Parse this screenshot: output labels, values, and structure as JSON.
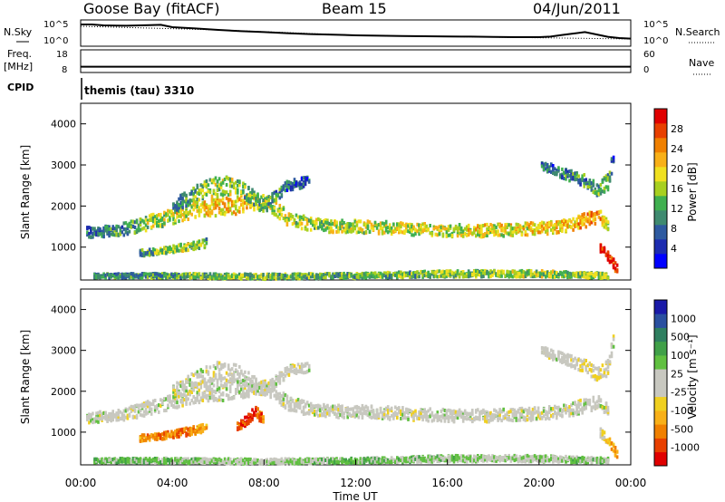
{
  "header": {
    "station": "Goose Bay (fitACF)",
    "beam": "Beam 15",
    "date": "04/Jun/2011"
  },
  "chart_data": [
    {
      "type": "line",
      "panel": "noise",
      "left_label": "N.Sky",
      "right_label": "N.Search",
      "left_ticks": [
        "10^5",
        "10^0"
      ],
      "right_ticks": [
        "10^5",
        "10^0"
      ],
      "series": [
        {
          "name": "N.Sky",
          "style": "solid",
          "x": [
            0,
            0.5,
            1,
            2,
            3,
            3.5,
            4,
            5,
            6,
            7,
            8,
            9,
            10,
            11,
            12,
            13,
            14,
            15,
            16,
            17,
            18,
            19,
            20,
            20.5,
            21,
            21.5,
            22,
            22.5,
            23,
            23.5,
            24
          ],
          "y": [
            1.0,
            1.0,
            0.95,
            0.93,
            0.96,
            0.98,
            0.85,
            0.78,
            0.7,
            0.63,
            0.58,
            0.52,
            0.47,
            0.44,
            0.4,
            0.38,
            0.36,
            0.35,
            0.34,
            0.33,
            0.31,
            0.3,
            0.3,
            0.33,
            0.42,
            0.5,
            0.58,
            0.45,
            0.32,
            0.25,
            0.22
          ]
        },
        {
          "name": "N.Search",
          "style": "dotted",
          "x": [
            0,
            6,
            12,
            18,
            24
          ],
          "y": [
            0.9,
            0.7,
            0.4,
            0.3,
            0.2
          ]
        }
      ]
    },
    {
      "type": "line",
      "panel": "frequency",
      "left_label": "Freq.",
      "left_unit": "[MHz]",
      "right_label": "Nave",
      "left_ticks": [
        "18",
        "8"
      ],
      "right_ticks": [
        "60",
        "0"
      ],
      "series": [
        {
          "name": "Freq.",
          "values_label": "frequency",
          "x": [
            0,
            24
          ],
          "y": [
            10.2,
            10.2
          ]
        },
        {
          "name": "Nave",
          "style": "dotted",
          "x": [
            0,
            24
          ],
          "y": [
            13,
            13
          ]
        }
      ]
    },
    {
      "type": "text",
      "panel": "cpid",
      "label": "CPID",
      "value": "themis (tau) 3310"
    },
    {
      "type": "heatmap",
      "panel": "power",
      "ylabel": "Slant Range [km]",
      "xlim": [
        0,
        24
      ],
      "ylim": [
        200,
        4500
      ],
      "yticks": [
        "1000",
        "2000",
        "3000",
        "4000"
      ],
      "colorbar": {
        "label": "Power [dB]",
        "ticks": [
          "4",
          "8",
          "12",
          "16",
          "20",
          "24",
          "28"
        ],
        "colors": [
          "#0000ff",
          "#1d2cb0",
          "#2e5aa0",
          "#3f8a70",
          "#40b050",
          "#a8d020",
          "#f0e020",
          "#f8b018",
          "#f08000",
          "#e84000",
          "#e00000"
        ]
      },
      "bands": [
        {
          "name": "main",
          "x": [
            0.2,
            1,
            2,
            3,
            4,
            4.8,
            5.5,
            6.5,
            7.5,
            8.2,
            9,
            10,
            11,
            12,
            14,
            16,
            18,
            20,
            21,
            22,
            22.6,
            23.0
          ],
          "y": [
            1350,
            1380,
            1450,
            1600,
            1750,
            1900,
            1980,
            2000,
            2100,
            2050,
            1700,
            1550,
            1500,
            1500,
            1450,
            1400,
            1400,
            1450,
            1500,
            1650,
            1750,
            1500
          ],
          "w": [
            250,
            250,
            300,
            350,
            350,
            400,
            450,
            450,
            400,
            350,
            350,
            300,
            300,
            300,
            300,
            300,
            300,
            300,
            300,
            350,
            300,
            250
          ],
          "level": [
            0.25,
            0.3,
            0.35,
            0.5,
            0.55,
            0.6,
            0.65,
            0.65,
            0.62,
            0.55,
            0.55,
            0.5,
            0.52,
            0.52,
            0.55,
            0.55,
            0.58,
            0.62,
            0.65,
            0.7,
            0.75,
            0.4
          ]
        },
        {
          "name": "upper",
          "x": [
            4,
            5,
            6,
            7,
            8,
            9,
            10
          ],
          "y": [
            2000,
            2300,
            2500,
            2400,
            2000,
            2500,
            2600
          ],
          "w": [
            300,
            400,
            500,
            400,
            300,
            250,
            250
          ],
          "level": [
            0.3,
            0.45,
            0.5,
            0.45,
            0.4,
            0.25,
            0.2
          ]
        },
        {
          "name": "lowE",
          "x": [
            2.5,
            3.5,
            4.5,
            5.5
          ],
          "y": [
            850,
            900,
            1000,
            1100
          ],
          "w": [
            150,
            150,
            200,
            200
          ],
          "level": [
            0.35,
            0.45,
            0.5,
            0.4
          ]
        },
        {
          "name": "near",
          "x": [
            0.5,
            4,
            8,
            12,
            16,
            20,
            23
          ],
          "y": [
            300,
            300,
            280,
            300,
            350,
            350,
            300
          ],
          "w": [
            100,
            120,
            120,
            120,
            150,
            150,
            120
          ],
          "level": [
            0.3,
            0.4,
            0.45,
            0.4,
            0.45,
            0.5,
            0.45
          ]
        },
        {
          "name": "late",
          "x": [
            20,
            21,
            22,
            22.5,
            23,
            23.2
          ],
          "y": [
            3000,
            2800,
            2600,
            2400,
            2600,
            3200
          ],
          "w": [
            200,
            250,
            300,
            300,
            400,
            400
          ],
          "level": [
            0.2,
            0.3,
            0.35,
            0.4,
            0.35,
            0.2
          ]
        },
        {
          "name": "spot",
          "x": [
            22.6,
            22.8,
            23.2,
            23.4
          ],
          "y": [
            1000,
            900,
            600,
            400
          ],
          "w": [
            200,
            200,
            250,
            250
          ],
          "level": [
            0.9,
            0.92,
            0.95,
            0.9
          ]
        }
      ]
    },
    {
      "type": "heatmap",
      "panel": "velocity",
      "ylabel": "Slant Range [km]",
      "xlabel": "Time UT",
      "xlim": [
        0,
        24
      ],
      "ylim": [
        200,
        4500
      ],
      "xticks": [
        "00:00",
        "04:00",
        "08:00",
        "12:00",
        "16:00",
        "20:00",
        "00:00"
      ],
      "yticks": [
        "1000",
        "2000",
        "3000",
        "4000"
      ],
      "colorbar": {
        "label": "Velocity [m s⁻¹]",
        "ticks": [
          "1000",
          "500",
          "100",
          "25",
          "-25",
          "-100",
          "-500",
          "-1000"
        ],
        "colors": [
          "#1a1aa8",
          "#2a50a0",
          "#2f7f60",
          "#40a048",
          "#60c040",
          "#c8c8c0",
          "#c8c8c0",
          "#f0d020",
          "#f8b018",
          "#f08000",
          "#e84000",
          "#e00000"
        ]
      },
      "bands": [
        {
          "name": "main",
          "x": [
            0.2,
            1,
            2,
            3,
            4,
            4.8,
            5.5,
            6.5,
            7.5,
            8.2,
            9,
            10,
            11,
            12,
            14,
            16,
            18,
            20,
            21,
            22,
            22.6,
            23.0
          ],
          "y": [
            1350,
            1380,
            1450,
            1600,
            1750,
            1900,
            1980,
            2000,
            2100,
            2050,
            1700,
            1550,
            1500,
            1500,
            1450,
            1400,
            1400,
            1450,
            1500,
            1650,
            1750,
            1500
          ],
          "w": [
            250,
            250,
            300,
            350,
            350,
            400,
            450,
            450,
            400,
            350,
            350,
            300,
            300,
            300,
            300,
            300,
            300,
            300,
            300,
            350,
            300,
            250
          ],
          "level": [
            0.5,
            0.5,
            0.5,
            0.5,
            0.5,
            0.5,
            0.5,
            0.5,
            0.5,
            0.5,
            0.5,
            0.5,
            0.5,
            0.5,
            0.5,
            0.5,
            0.5,
            0.5,
            0.5,
            0.5,
            0.5,
            0.5
          ]
        },
        {
          "name": "upper",
          "x": [
            4,
            5,
            6,
            7,
            8,
            9,
            10
          ],
          "y": [
            2000,
            2300,
            2500,
            2400,
            2000,
            2500,
            2600
          ],
          "w": [
            300,
            400,
            500,
            400,
            300,
            250,
            250
          ],
          "level": [
            0.5,
            0.5,
            0.5,
            0.5,
            0.5,
            0.5,
            0.5
          ]
        },
        {
          "name": "lowE",
          "x": [
            2.5,
            3.5,
            4.5,
            5.5
          ],
          "y": [
            850,
            900,
            1000,
            1100
          ],
          "w": [
            150,
            150,
            200,
            200
          ],
          "level": [
            0.72,
            0.8,
            0.78,
            0.7
          ]
        },
        {
          "name": "flow",
          "x": [
            6.8,
            7.2,
            7.6,
            8.0
          ],
          "y": [
            1100,
            1300,
            1500,
            1250
          ],
          "w": [
            250,
            250,
            250,
            250
          ],
          "level": [
            0.85,
            0.9,
            0.88,
            0.8
          ]
        },
        {
          "name": "near",
          "x": [
            0.5,
            4,
            8,
            12,
            16,
            20,
            23
          ],
          "y": [
            300,
            300,
            280,
            300,
            350,
            350,
            300
          ],
          "w": [
            100,
            120,
            120,
            120,
            150,
            150,
            120
          ],
          "level": [
            0.35,
            0.4,
            0.45,
            0.38,
            0.42,
            0.45,
            0.4
          ]
        },
        {
          "name": "late",
          "x": [
            20,
            21,
            22,
            22.5,
            23,
            23.2
          ],
          "y": [
            3000,
            2800,
            2600,
            2400,
            2600,
            3200
          ],
          "w": [
            200,
            250,
            300,
            300,
            400,
            400
          ],
          "level": [
            0.5,
            0.5,
            0.55,
            0.6,
            0.55,
            0.5
          ]
        },
        {
          "name": "spot",
          "x": [
            22.6,
            22.8,
            23.2,
            23.4
          ],
          "y": [
            1000,
            900,
            600,
            400
          ],
          "w": [
            200,
            200,
            250,
            250
          ],
          "level": [
            0.55,
            0.6,
            0.75,
            0.7
          ]
        }
      ]
    }
  ]
}
